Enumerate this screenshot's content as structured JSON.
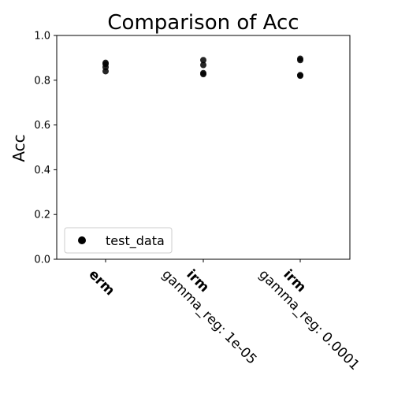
{
  "chart_data": {
    "type": "scatter",
    "title": "Comparison of Acc",
    "ylabel": "Acc",
    "xlabel": "",
    "ylim": [
      0,
      1.0
    ],
    "yticks": [
      "0.0",
      "0.2",
      "0.4",
      "0.6",
      "0.8",
      "1.0"
    ],
    "grid": false,
    "legend_position": "lower-left",
    "categories": [
      {
        "name": "erm",
        "sub": ""
      },
      {
        "name": "irm",
        "sub": "gamma_reg: 1e-05"
      },
      {
        "name": "irm",
        "sub": "gamma_reg: 0.0001"
      }
    ],
    "series": [
      {
        "name": "test_data",
        "color": "#000000",
        "points": [
          {
            "category": 0,
            "y": 0.878
          },
          {
            "category": 0,
            "y": 0.872
          },
          {
            "category": 0,
            "y": 0.858
          },
          {
            "category": 0,
            "y": 0.84
          },
          {
            "category": 1,
            "y": 0.89
          },
          {
            "category": 1,
            "y": 0.868
          },
          {
            "category": 1,
            "y": 0.832
          },
          {
            "category": 1,
            "y": 0.827
          },
          {
            "category": 2,
            "y": 0.896
          },
          {
            "category": 2,
            "y": 0.89
          },
          {
            "category": 2,
            "y": 0.823
          },
          {
            "category": 2,
            "y": 0.82
          }
        ]
      }
    ]
  }
}
